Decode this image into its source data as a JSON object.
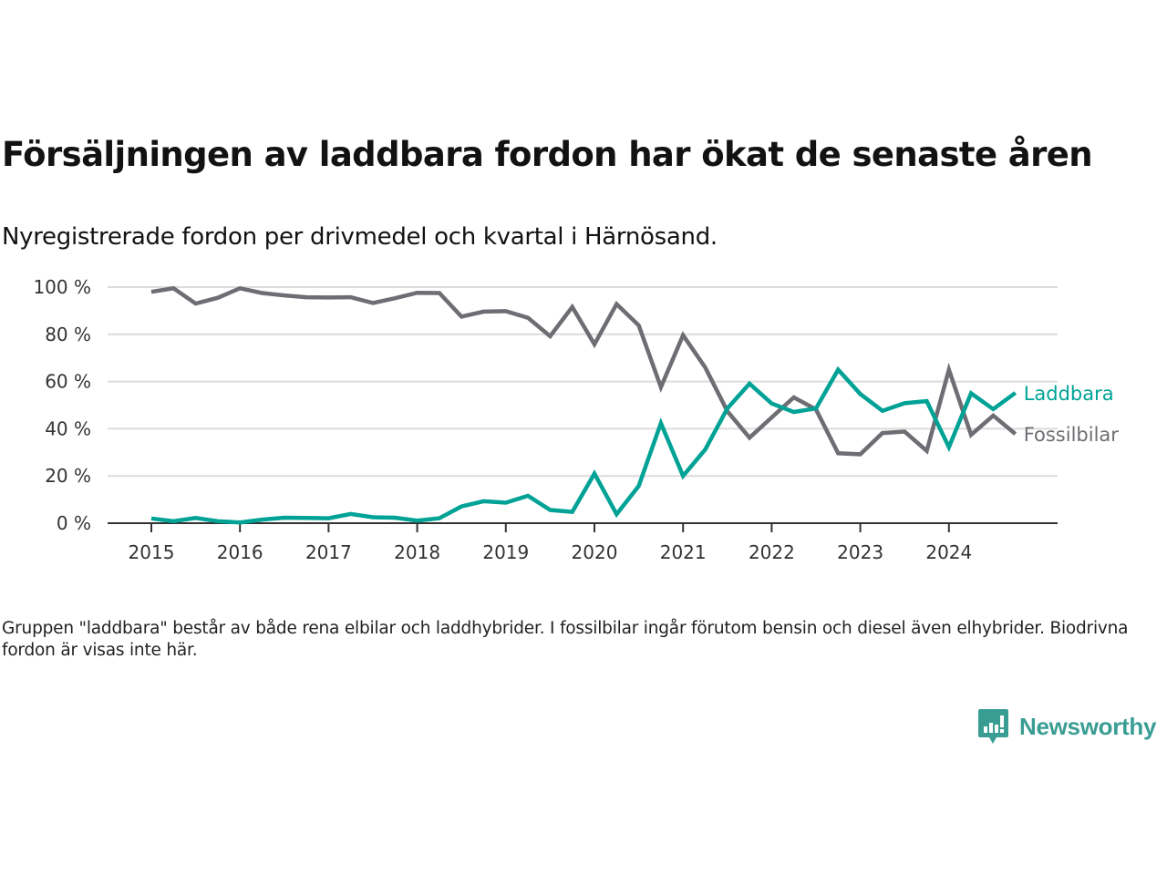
{
  "header": {
    "title": "Försäljningen av laddbara fordon har ökat de senaste åren",
    "subtitle": "Nyregistrerade fordon per drivmedel och kvartal i Härnösand."
  },
  "footer": {
    "note": "Gruppen \"laddbara\" består av både rena elbilar och laddhybrider. I fossilbilar ingår förutom bensin och diesel även elhybrider. Biodrivna fordon är visas inte här.",
    "logo_text": "Newsworthy",
    "logo_icon": "bar-chart-speech-bubble-icon"
  },
  "chart_data": {
    "type": "line",
    "title": "Försäljningen av laddbara fordon har ökat de senaste åren",
    "subtitle": "Nyregistrerade fordon per drivmedel och kvartal i Härnösand.",
    "xlabel": "",
    "ylabel": "",
    "x_unit": "quarter",
    "x_start": "2015 Q1",
    "x_end": "2024 Q4",
    "x_ticks": [
      "2015",
      "2016",
      "2017",
      "2018",
      "2019",
      "2020",
      "2021",
      "2022",
      "2023",
      "2024"
    ],
    "y_ticks": [
      0,
      20,
      40,
      60,
      80,
      100
    ],
    "y_tick_labels": [
      "0 %",
      "20 %",
      "40 %",
      "60 %",
      "80 %",
      "100 %"
    ],
    "ylim": [
      0,
      100
    ],
    "grid": "horizontal",
    "legend": "inline-right",
    "series": [
      {
        "name": "Laddbara",
        "color": "#00a296",
        "values": [
          2.0,
          0.8,
          2.2,
          0.8,
          0.3,
          1.5,
          2.3,
          2.2,
          2.1,
          3.9,
          2.5,
          2.3,
          1.1,
          2.1,
          7.1,
          9.3,
          8.7,
          11.6,
          5.6,
          4.8,
          21.0,
          3.8,
          15.8,
          42.4,
          20.0,
          31.2,
          48.6,
          59.1,
          50.7,
          47.1,
          48.6,
          65.0,
          54.7,
          47.6,
          50.8,
          51.7,
          32.2,
          55.0,
          48.3,
          55.2
        ]
      },
      {
        "name": "Fossilbilar",
        "color": "#6e6d73",
        "values": [
          98.0,
          99.5,
          93.0,
          95.5,
          99.5,
          97.5,
          96.5,
          95.7,
          95.6,
          95.7,
          93.3,
          95.3,
          97.6,
          97.5,
          87.5,
          89.6,
          89.8,
          87.0,
          79.2,
          91.6,
          75.8,
          92.8,
          83.8,
          57.6,
          79.6,
          66.0,
          47.4,
          36.2,
          44.8,
          53.3,
          48.2,
          29.6,
          29.2,
          38.2,
          38.8,
          30.6,
          65.0,
          37.4,
          45.6,
          37.8
        ]
      }
    ]
  }
}
